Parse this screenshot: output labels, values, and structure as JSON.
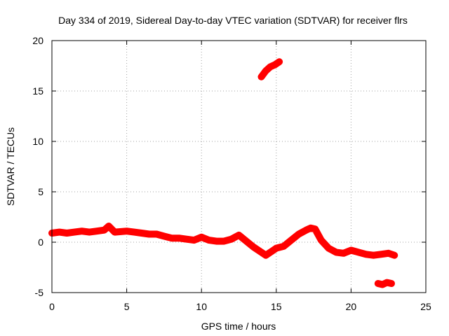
{
  "chart_data": {
    "type": "scatter",
    "title": "Day 334 of 2019, Sidereal Day-to-day VTEC variation (SDTVAR) for receiver flrs",
    "xlabel": "GPS time / hours",
    "ylabel": "SDTVAR / TECUs",
    "xlim": [
      0,
      25
    ],
    "ylim": [
      -5,
      20
    ],
    "grid": true,
    "x_ticks": [
      "0",
      "5",
      "10",
      "15",
      "20",
      "25"
    ],
    "y_ticks": [
      "-5",
      "0",
      "5",
      "10",
      "15",
      "20"
    ],
    "series_color": "#ff0000",
    "series": [
      {
        "name": "main-band",
        "x": [
          0,
          0.5,
          1,
          1.5,
          2,
          2.5,
          3,
          3.5,
          3.8,
          4.2,
          5,
          5.5,
          6,
          6.5,
          7,
          7.5,
          8,
          8.5,
          9,
          9.5,
          10,
          10.5,
          11,
          11.5,
          12,
          12.5,
          13,
          13.5,
          14,
          14.3,
          14.7,
          15,
          15.5,
          16,
          16.5,
          17,
          17.3,
          17.6,
          18,
          18.5,
          19,
          19.5,
          20,
          20.5,
          21,
          21.5,
          22,
          22.5,
          22.9
        ],
        "y": [
          0.9,
          1.0,
          0.9,
          1.0,
          1.1,
          1.0,
          1.1,
          1.2,
          1.6,
          1.0,
          1.1,
          1.0,
          0.9,
          0.8,
          0.8,
          0.6,
          0.4,
          0.4,
          0.3,
          0.2,
          0.5,
          0.2,
          0.1,
          0.1,
          0.3,
          0.7,
          0.1,
          -0.5,
          -1.0,
          -1.3,
          -0.9,
          -0.6,
          -0.4,
          0.2,
          0.8,
          1.2,
          1.4,
          1.3,
          0.2,
          -0.6,
          -1.0,
          -1.1,
          -0.8,
          -1.0,
          -1.2,
          -1.3,
          -1.2,
          -1.1,
          -1.3
        ]
      },
      {
        "name": "outlier-upper",
        "x": [
          14.0,
          14.3,
          14.6,
          14.9,
          15.2
        ],
        "y": [
          16.4,
          17.0,
          17.4,
          17.6,
          17.9
        ]
      },
      {
        "name": "outlier-lower",
        "x": [
          21.8,
          22.1,
          22.4,
          22.7
        ],
        "y": [
          -4.1,
          -4.2,
          -4.0,
          -4.1
        ]
      }
    ]
  }
}
